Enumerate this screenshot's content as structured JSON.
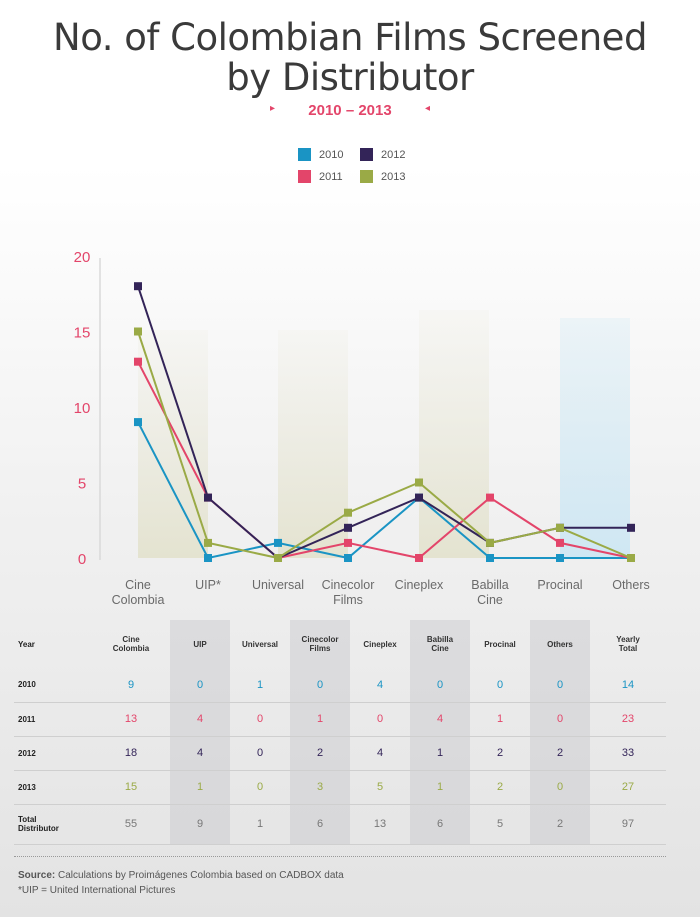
{
  "title_line1": "No. of Colombian Films Screened",
  "title_line2": "by Distributor",
  "subtitle": "2010 – 2013",
  "colors": {
    "2010": "#1a94c4",
    "2011": "#e3456a",
    "2012": "#332458",
    "2013": "#9aaa46"
  },
  "legend": [
    {
      "label": "2010",
      "color": "#1a94c4"
    },
    {
      "label": "2011",
      "color": "#e3456a"
    },
    {
      "label": "2012",
      "color": "#332458"
    },
    {
      "label": "2013",
      "color": "#9aaa46"
    }
  ],
  "chart_data": {
    "type": "line",
    "categories": [
      "Cine Colombia",
      "UIP*",
      "Universal",
      "Cinecolor Films",
      "Cineplex",
      "Babilla Cine",
      "Procinal",
      "Others"
    ],
    "category_lines": [
      [
        "Cine",
        "Colombia"
      ],
      [
        "UIP*"
      ],
      [
        "Universal"
      ],
      [
        "Cinecolor",
        "Films"
      ],
      [
        "Cineplex"
      ],
      [
        "Babilla",
        "Cine"
      ],
      [
        "Procinal"
      ],
      [
        "Others"
      ]
    ],
    "series": [
      {
        "name": "2010",
        "color": "#1a94c4",
        "values": [
          9,
          0,
          1,
          0,
          4,
          0,
          0,
          0
        ]
      },
      {
        "name": "2011",
        "color": "#e3456a",
        "values": [
          13,
          4,
          0,
          1,
          0,
          4,
          1,
          0
        ]
      },
      {
        "name": "2012",
        "color": "#332458",
        "values": [
          18,
          4,
          0,
          2,
          4,
          1,
          2,
          2
        ]
      },
      {
        "name": "2013",
        "color": "#9aaa46",
        "values": [
          15,
          1,
          0,
          3,
          5,
          1,
          2,
          0
        ]
      }
    ],
    "ylim": [
      0,
      20
    ],
    "yticks": [
      0,
      5,
      10,
      15,
      20
    ],
    "xlabel": "",
    "ylabel": ""
  },
  "table": {
    "year_header": "Year",
    "headers": [
      [
        "Cine",
        "Colombia"
      ],
      [
        "UIP"
      ],
      [
        "Universal"
      ],
      [
        "Cinecolor",
        "Films"
      ],
      [
        "Cineplex"
      ],
      [
        "Babilla",
        "Cine"
      ],
      [
        "Procinal"
      ],
      [
        "Others"
      ],
      [
        "Yearly",
        "Total"
      ]
    ],
    "rows": [
      {
        "label": "2010",
        "color": "#1a94c4",
        "values": [
          "9",
          "0",
          "1",
          "0",
          "4",
          "0",
          "0",
          "0",
          "14"
        ]
      },
      {
        "label": "2011",
        "color": "#e3456a",
        "values": [
          "13",
          "4",
          "0",
          "1",
          "0",
          "4",
          "1",
          "0",
          "23"
        ]
      },
      {
        "label": "2012",
        "color": "#332458",
        "values": [
          "18",
          "4",
          "0",
          "2",
          "4",
          "1",
          "2",
          "2",
          "33"
        ]
      },
      {
        "label": "2013",
        "color": "#9aaa46",
        "values": [
          "15",
          "1",
          "0",
          "3",
          "5",
          "1",
          "2",
          "0",
          "27"
        ]
      }
    ],
    "total_label": [
      "Total",
      "Distributor"
    ],
    "totals": [
      "55",
      "9",
      "1",
      "6",
      "13",
      "6",
      "5",
      "2",
      "97"
    ]
  },
  "source_label": "Source:",
  "source_text": " Calculations by Proimágenes Colombia based on CADBOX data",
  "footnote": "*UIP =  United International Pictures"
}
